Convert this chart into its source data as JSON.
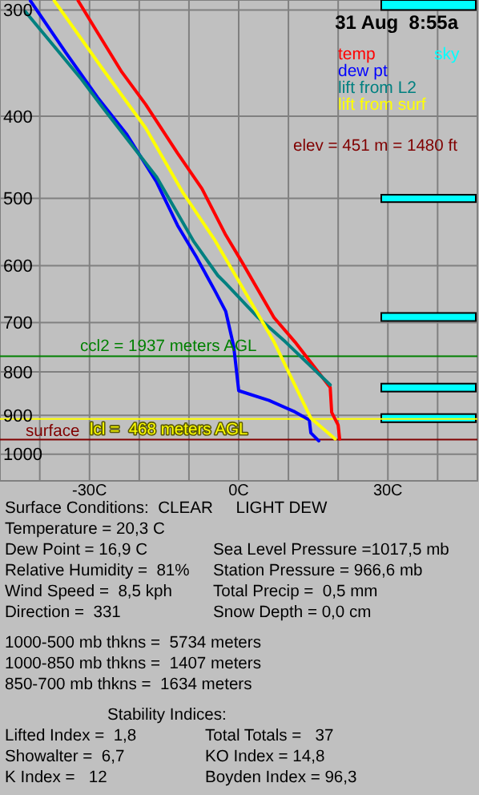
{
  "chart_data": {
    "type": "line",
    "title": "31 Aug  8:55a",
    "xlim": [
      -48,
      48
    ],
    "xticks": [
      {
        "value": -40,
        "label": null
      },
      {
        "value": -30,
        "label": "-30C"
      },
      {
        "value": -20,
        "label": null
      },
      {
        "value": -10,
        "label": null
      },
      {
        "value": 0,
        "label": "0C"
      },
      {
        "value": 10,
        "label": null
      },
      {
        "value": 20,
        "label": null
      },
      {
        "value": 30,
        "label": "30C"
      },
      {
        "value": 40,
        "label": null
      }
    ],
    "ylim": [
      1075,
      292
    ],
    "log": "y",
    "yticks": [
      300,
      400,
      500,
      600,
      700,
      800,
      900,
      1000
    ],
    "grid": true,
    "legend": "top right",
    "series": [
      {
        "name": "temp",
        "color": "#ff0000",
        "x": [
          -32.3,
          -28.4,
          -23.5,
          -18.7,
          -12.3,
          -7.4,
          -2.6,
          0.6,
          7.1,
          11.3,
          18.4,
          18.7,
          20.0,
          20.3
        ],
        "values": [
          292.5,
          318.9,
          355.0,
          387.6,
          442.3,
          486.8,
          552.2,
          593.3,
          690.6,
          737.6,
          834.6,
          893.1,
          924.2,
          959.6
        ]
      },
      {
        "name": "dew pt",
        "color": "#0000ff",
        "x": [
          -41.9,
          -34.8,
          -28.4,
          -22.6,
          -16.5,
          -12.3,
          -8.4,
          -4.8,
          -2.6,
          -1.0,
          0.0,
          6.1,
          11.3,
          14.2,
          14.5,
          16.1
        ],
        "values": [
          292.5,
          336.6,
          380.2,
          419.6,
          478.4,
          537.8,
          587.5,
          641.9,
          679.3,
          746.8,
          841.9,
          864.3,
          891.7,
          911.4,
          943.8,
          964.7
        ]
      },
      {
        "name": "lift from L2",
        "color": "#008080",
        "x": [
          -42.9,
          -31.6,
          -27.4,
          -16.5,
          -9.0,
          -4.2,
          -2.6,
          3.9,
          9.4,
          18.4
        ],
        "values": [
          301.3,
          362.0,
          390.4,
          472.0,
          562.3,
          616.1,
          629.6,
          690.6,
          737.6,
          828.9
        ]
      },
      {
        "name": "lift from surf",
        "color": "#ffff00",
        "x": [
          -37.1,
          -27.4,
          -18.7,
          -11.3,
          -4.8,
          -1.0,
          7.1,
          14.5,
          19.4
        ],
        "values": [
          292.5,
          351.8,
          413.1,
          491.4,
          559.9,
          611.1,
          737.6,
          906.9,
          959.6
        ]
      }
    ],
    "ref_lines": [
      {
        "axis": "y",
        "value": 767,
        "color": "#008000"
      },
      {
        "axis": "y",
        "value": 909,
        "color": "#ffff00"
      },
      {
        "axis": "y",
        "value": 961,
        "color": "#800000"
      }
    ],
    "bands": [
      {
        "axis": "y",
        "from": 292,
        "to": 300,
        "label": "sky",
        "color": "#00ffff"
      },
      {
        "axis": "y",
        "from": 495,
        "to": 505,
        "color": "#00ffff"
      },
      {
        "axis": "y",
        "from": 682,
        "to": 697,
        "color": "#00ffff"
      },
      {
        "axis": "y",
        "from": 826,
        "to": 844,
        "color": "#00ffff"
      },
      {
        "axis": "y",
        "from": 897,
        "to": 917,
        "color": "#00ffff"
      }
    ],
    "annotations": [
      "elev = 451 m = 1480 ft",
      "Surface Conditions:  CLEAR     LIGHT DEW",
      "Temperature = 20,3 C",
      "Dew Point = 16,9 C",
      "Sea Level Pressure =1017,5 mb",
      "Relative Humidity =  81%",
      "Station Pressure = 966,6 mb",
      "Wind Speed =  8,5 kph",
      "Total Precip =  0,5 mm",
      "Direction =  331",
      "Snow Depth = 0,0 cm",
      "1000-500 mb thkns =  5734 meters",
      "1000-850 mb thkns =  1407 meters",
      "850-700 mb thkns =  1634 meters",
      "Stability Indices:",
      "Lifted Index =  1,8",
      "Total Totals =   37",
      "Showalter =  6,7",
      "KO Index = 14,8",
      "K Index =   12",
      "Boyden Index = 96,3",
      "ccl2 = 1937 meters AGL",
      "lcl =  468 meters AGL",
      "surface"
    ]
  }
}
